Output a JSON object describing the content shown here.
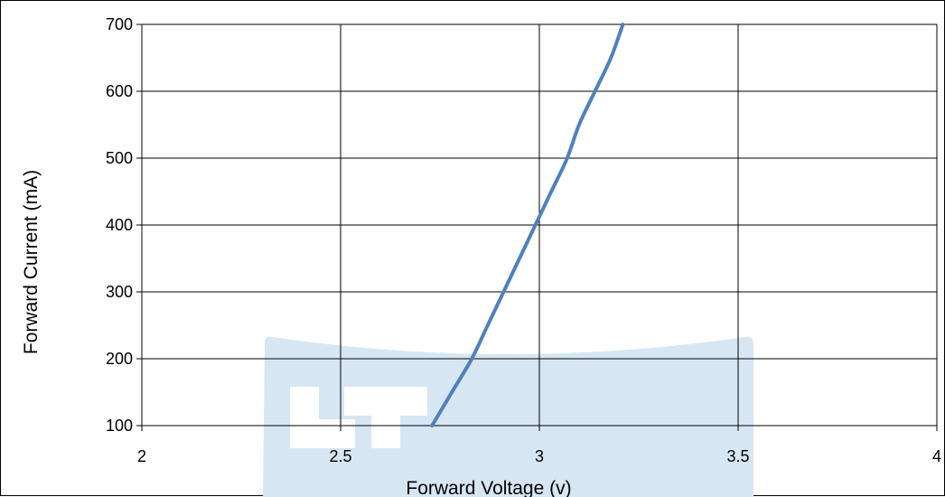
{
  "chart_data": {
    "type": "line",
    "title": "",
    "xlabel": "Forward Voltage (v)",
    "ylabel": "Forward Current  (mA)",
    "xlim": [
      2,
      4
    ],
    "ylim": [
      100,
      700
    ],
    "x_ticks": [
      2,
      2.5,
      3,
      3.5,
      4
    ],
    "y_ticks": [
      100,
      200,
      300,
      400,
      500,
      600,
      700
    ],
    "x_tick_labels": [
      "2",
      "2.5",
      "3",
      "3.5",
      "4"
    ],
    "y_tick_labels": [
      "100",
      "200",
      "300",
      "400",
      "500",
      "600",
      "700"
    ],
    "grid": true,
    "legend": "none",
    "series": [
      {
        "color": "#4f81bd",
        "x": [
          2.73,
          2.78,
          2.83,
          2.87,
          2.91,
          2.95,
          2.99,
          3.03,
          3.07,
          3.1,
          3.14,
          3.18,
          3.21
        ],
        "y": [
          100,
          150,
          200,
          250,
          300,
          350,
          400,
          450,
          500,
          550,
          600,
          650,
          700
        ]
      }
    ]
  },
  "colors": {
    "line": "#4f81bd",
    "grid": "#000000",
    "watermark": "#d7e6f3"
  },
  "watermark_icon": "led-logo-watermark"
}
